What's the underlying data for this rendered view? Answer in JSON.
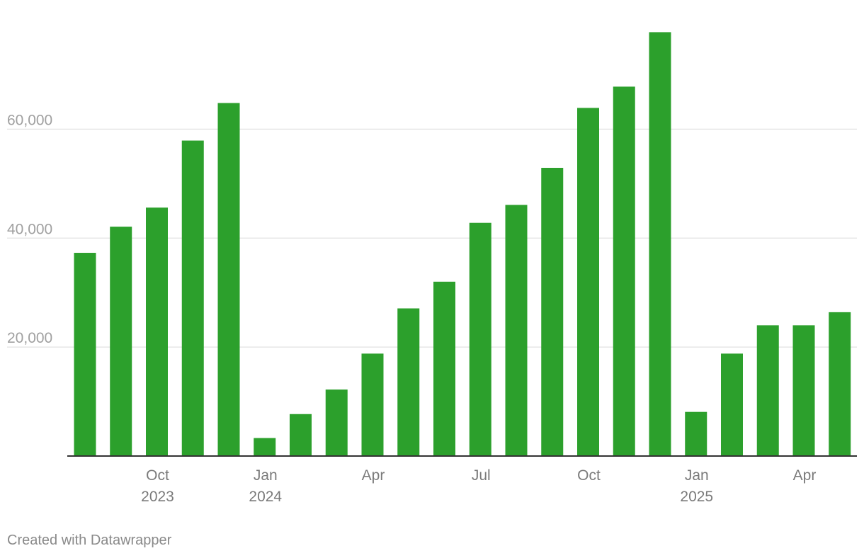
{
  "credit": "Created with Datawrapper",
  "chart_data": {
    "type": "bar",
    "title": "",
    "xlabel": "",
    "ylabel": "",
    "bar_color": "#2ca02c",
    "grid": true,
    "categories": [
      "Aug 2023",
      "Sep 2023",
      "Oct 2023",
      "Nov 2023",
      "Dec 2023",
      "Jan 2024",
      "Feb 2024",
      "Mar 2024",
      "Apr 2024",
      "May 2024",
      "Jun 2024",
      "Jul 2024",
      "Aug 2024",
      "Sep 2024",
      "Oct 2024",
      "Nov 2024",
      "Dec 2024",
      "Jan 2025",
      "Feb 2025",
      "Mar 2025",
      "Apr 2025",
      "May 2025"
    ],
    "values": [
      37300,
      42100,
      45600,
      57900,
      64800,
      3300,
      7700,
      12200,
      18800,
      27100,
      32000,
      42800,
      46100,
      52900,
      63900,
      67800,
      77800,
      8100,
      18800,
      24000,
      24000,
      26400
    ],
    "ylim": [
      0,
      80000
    ],
    "yticks": [
      {
        "value": 20000,
        "label": "20,000"
      },
      {
        "value": 40000,
        "label": "40,000"
      },
      {
        "value": 60000,
        "label": "60,000"
      }
    ],
    "xticks": [
      {
        "index": 2,
        "label": "Oct",
        "sublabel": "2023"
      },
      {
        "index": 5,
        "label": "Jan",
        "sublabel": "2024"
      },
      {
        "index": 8,
        "label": "Apr",
        "sublabel": ""
      },
      {
        "index": 11,
        "label": "Jul",
        "sublabel": ""
      },
      {
        "index": 14,
        "label": "Oct",
        "sublabel": ""
      },
      {
        "index": 17,
        "label": "Jan",
        "sublabel": "2025"
      },
      {
        "index": 20,
        "label": "Apr",
        "sublabel": ""
      }
    ]
  }
}
